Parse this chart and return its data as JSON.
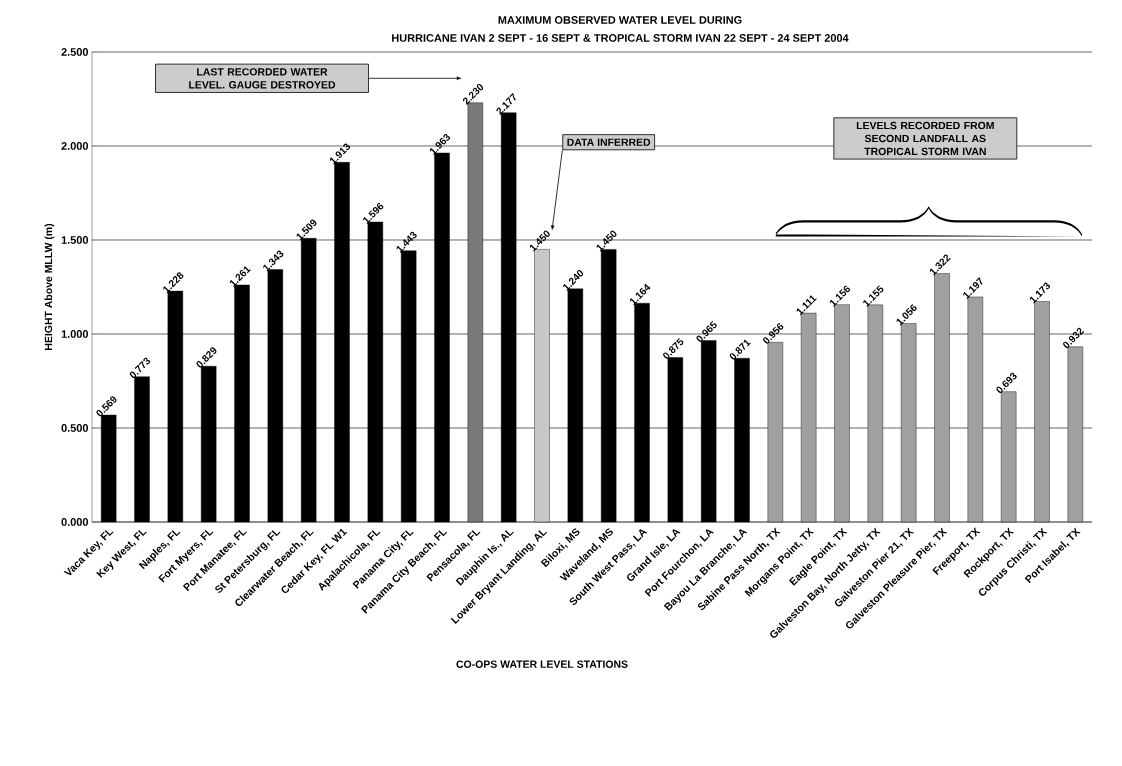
{
  "chart_data": {
    "type": "bar",
    "title": "MAXIMUM OBSERVED WATER LEVEL DURING",
    "subtitle": "HURRICANE IVAN 2 SEPT - 16 SEPT & TROPICAL STORM IVAN 22 SEPT - 24 SEPT 2004",
    "xlabel": "CO-OPS WATER LEVEL STATIONS",
    "ylabel": "HEIGHT Above MLLW  (m)",
    "categories": [
      "Vaca Key, FL",
      "Key West, FL",
      "Naples, FL",
      "Fort Myers, FL",
      "Port Manatee, FL",
      "St Petersburg, FL",
      "Clearwater Beach, FL",
      "Cedar Key, FL W1",
      "Apalachicola, FL",
      "Panama City, FL",
      "Panama City Beach, FL",
      "Pensacola, FL",
      "Dauphin Is., AL",
      "Lower Bryant Landing, AL",
      "Biloxi, MS",
      "Waveland, MS",
      "South West Pass, LA",
      "Grand Isle, LA",
      "Port Fourchon, LA",
      "Bayou La Branche, LA",
      "Sabine Pass North, TX",
      "Morgans Point, TX",
      "Eagle Point, TX",
      "Galveston Bay, North Jetty, TX",
      "Galveston Pier 21, TX",
      "Galveston Pleasure Pier, TX",
      "Freeport, TX",
      "Rockport, TX",
      "Corpus Christi, TX",
      "Port Isabel, TX"
    ],
    "values": [
      0.569,
      0.773,
      1.228,
      0.829,
      1.261,
      1.343,
      1.509,
      1.913,
      1.596,
      1.443,
      1.963,
      2.23,
      2.177,
      1.45,
      1.24,
      1.45,
      1.164,
      0.875,
      0.965,
      0.871,
      0.956,
      1.111,
      1.156,
      1.155,
      1.056,
      1.322,
      1.197,
      0.693,
      1.173,
      0.932
    ],
    "value_labels": [
      "0.569",
      "0.773",
      "1.228",
      "0.829",
      "1.261",
      "1.343",
      "1.509",
      "1.913",
      "1.596",
      "1.443",
      "1.963",
      "2.230",
      "2.177",
      "1.450",
      "1.240",
      "1.450",
      "1.164",
      "0.875",
      "0.965",
      "0.871",
      "0.956",
      "1.111",
      "1.156",
      "1.155",
      "1.056",
      "1.322",
      "1.197",
      "0.693",
      "1.173",
      "0.932"
    ],
    "colors": [
      "#000000",
      "#000000",
      "#000000",
      "#000000",
      "#000000",
      "#000000",
      "#000000",
      "#000000",
      "#000000",
      "#000000",
      "#000000",
      "#7a7a7a",
      "#000000",
      "#c8c8c8",
      "#000000",
      "#000000",
      "#000000",
      "#000000",
      "#000000",
      "#000000",
      "#a0a0a0",
      "#a0a0a0",
      "#a0a0a0",
      "#a0a0a0",
      "#a0a0a0",
      "#a0a0a0",
      "#a0a0a0",
      "#a0a0a0",
      "#a0a0a0",
      "#a0a0a0"
    ],
    "ylim": [
      0,
      2.5
    ],
    "yticks": [
      {
        "value": 0,
        "label": "0.000"
      },
      {
        "value": 0.5,
        "label": "0.500"
      },
      {
        "value": 1,
        "label": "1.000"
      },
      {
        "value": 1.5,
        "label": "1.500"
      },
      {
        "value": 2,
        "label": "2.000"
      },
      {
        "value": 2.5,
        "label": "2.500"
      }
    ],
    "grid": "y",
    "annotations": [
      "LAST RECORDED WATER LEVEL. GAUGE DESTROYED",
      "DATA INFERRED",
      "LEVELS RECORDED FROM SECOND LANDFALL AS TROPICAL STORM IVAN"
    ]
  }
}
